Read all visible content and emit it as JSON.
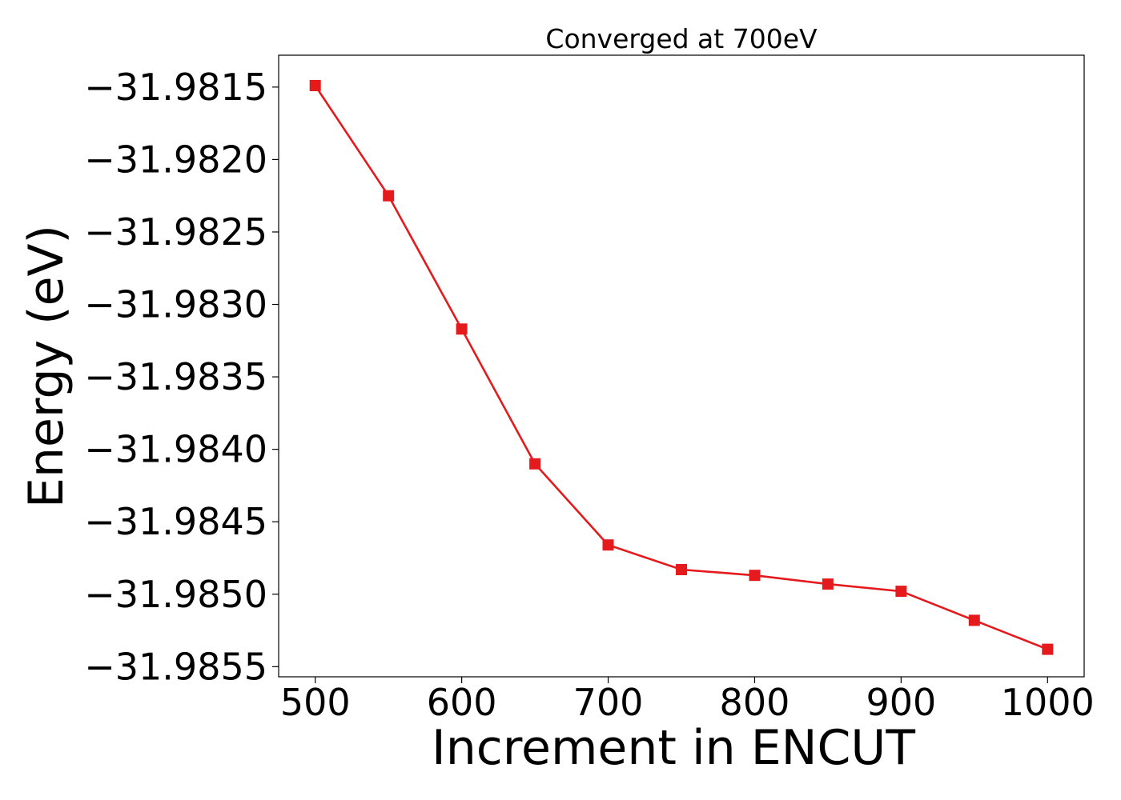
{
  "chart_data": {
    "type": "line",
    "title": "Converged at 700eV",
    "xlabel": "Increment in ENCUT",
    "ylabel": "Energy (eV)",
    "xlim": [
      475,
      1025
    ],
    "ylim": [
      -31.98557,
      -31.98128
    ],
    "x_ticks": [
      500,
      600,
      700,
      800,
      900,
      1000
    ],
    "x_tick_labels": [
      "500",
      "600",
      "700",
      "800",
      "900",
      "1000"
    ],
    "y_ticks": [
      -31.9815,
      -31.982,
      -31.9825,
      -31.983,
      -31.9835,
      -31.984,
      -31.9845,
      -31.985,
      -31.9855
    ],
    "y_tick_labels": [
      "−31.9815",
      "−31.9820",
      "−31.9825",
      "−31.9830",
      "−31.9835",
      "−31.9840",
      "−31.9845",
      "−31.9850",
      "−31.9855"
    ],
    "grid": false,
    "legend": "none",
    "color": "#e41a1c",
    "marker": "square",
    "x": [
      500,
      550,
      600,
      650,
      700,
      750,
      800,
      850,
      900,
      950,
      1000
    ],
    "series": [
      {
        "values": [
          -31.98149,
          -31.98225,
          -31.98317,
          -31.9841,
          -31.98466,
          -31.98483,
          -31.98487,
          -31.98493,
          -31.98498,
          -31.98518,
          -31.98538
        ]
      }
    ]
  }
}
